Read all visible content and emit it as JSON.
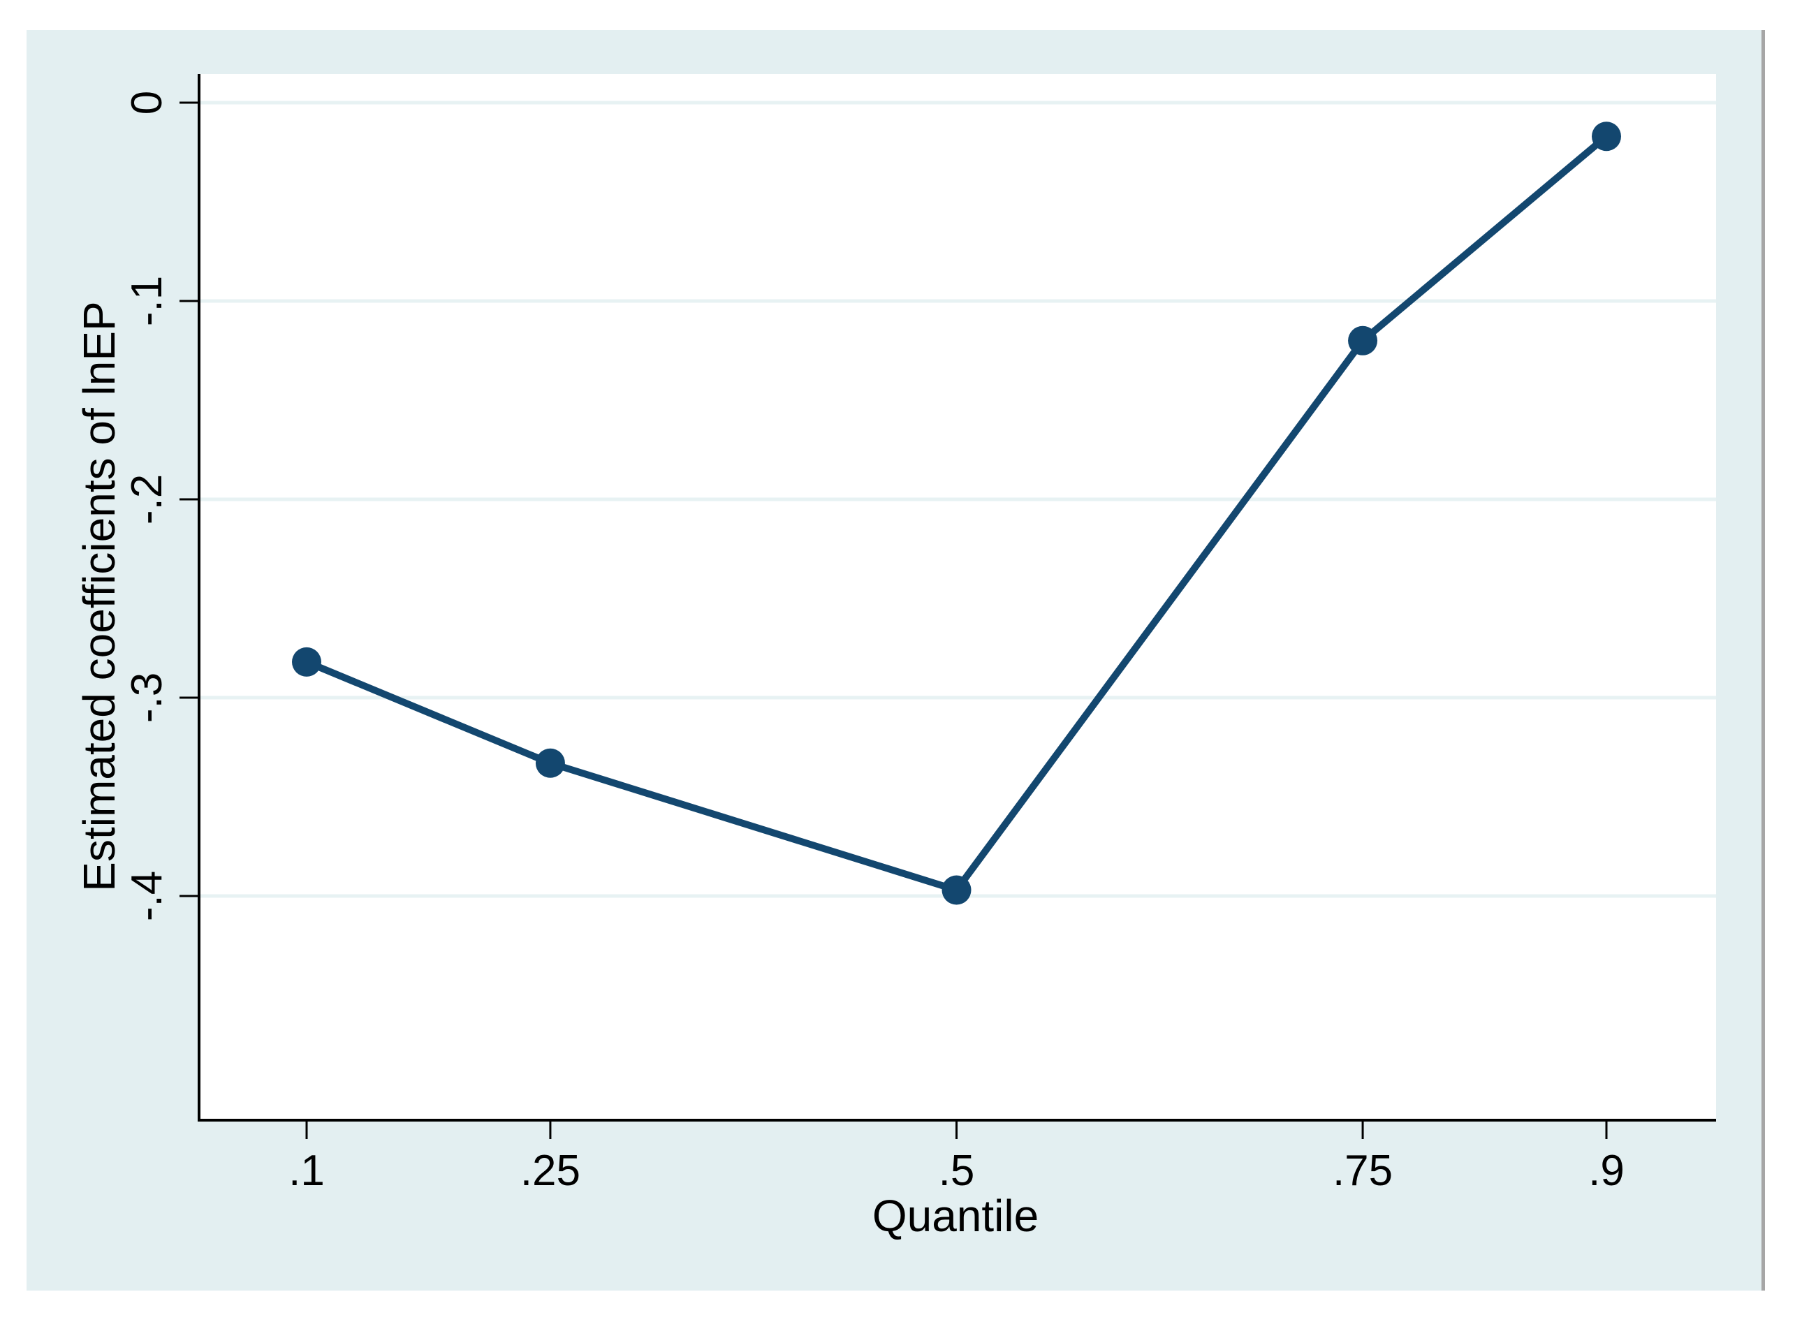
{
  "figure": {
    "graph_background_color": "#e3eff1",
    "plot_background_color": "#ffffff",
    "window_border_color": "#a6a6a6",
    "axis_line_color": "#000000",
    "text_color": "#000000"
  },
  "chart_data": {
    "type": "line",
    "title": "",
    "xlabel": "Quantile",
    "ylabel": "Estimated coefficients of lnEP",
    "x": [
      0.1,
      0.25,
      0.5,
      0.75,
      0.9
    ],
    "series": [
      {
        "name": "Estimated coefficients of lnEP",
        "values": [
          -0.282,
          -0.333,
          -0.397,
          -0.12,
          -0.017
        ],
        "color": "#13476f",
        "marker": "circle",
        "marker_radius": 21,
        "line_width": 10
      }
    ],
    "x_ticks": {
      "values": [
        0.1,
        0.25,
        0.5,
        0.75,
        0.9
      ],
      "labels": [
        ".1",
        ".25",
        ".5",
        ".75",
        ".9"
      ]
    },
    "y_ticks": {
      "values": [
        0,
        -0.1,
        -0.2,
        -0.3,
        -0.4
      ],
      "labels": [
        "0",
        "-.1",
        "-.2",
        "-.3",
        "-.4"
      ]
    },
    "xlim": [
      0.033,
      0.967
    ],
    "ylim": [
      -0.512,
      0.014
    ],
    "grid": "horizontal",
    "gridline_color": "#e7f2f3",
    "legend_position": "none"
  }
}
